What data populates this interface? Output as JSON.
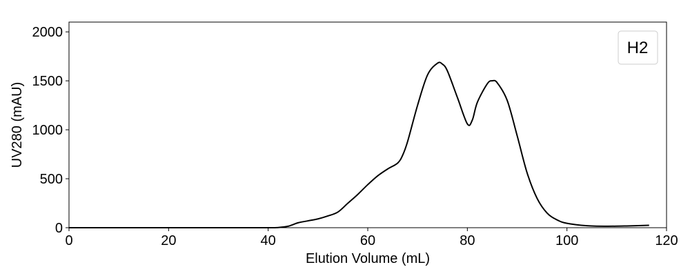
{
  "chart_data": {
    "type": "line",
    "xlabel": "Elution Volume (mL)",
    "ylabel": "UV280 (mAU)",
    "xlim": [
      0,
      120
    ],
    "ylim": [
      0,
      2100
    ],
    "xticks": [
      0,
      20,
      40,
      60,
      80,
      100,
      120
    ],
    "yticks": [
      0,
      500,
      1000,
      1500,
      2000
    ],
    "grid": false,
    "legend_placement": "top-right",
    "legend_label": "H2",
    "line_color": "#000000",
    "series": [
      {
        "name": "H2",
        "x": [
          0,
          10,
          20,
          30,
          40,
          42,
          44,
          46,
          48,
          50,
          52,
          54,
          56,
          58,
          60,
          62,
          64,
          66,
          67,
          68,
          70,
          72,
          74,
          75,
          76,
          78,
          80,
          81,
          82,
          84,
          85,
          86,
          88,
          90,
          92,
          94,
          96,
          98,
          100,
          104,
          108,
          112,
          116.5
        ],
        "y": [
          0,
          0,
          0,
          0,
          0,
          2,
          15,
          50,
          70,
          90,
          120,
          160,
          250,
          340,
          440,
          530,
          600,
          660,
          740,
          880,
          1250,
          1560,
          1680,
          1670,
          1600,
          1330,
          1060,
          1100,
          1280,
          1470,
          1500,
          1480,
          1300,
          940,
          560,
          300,
          150,
          80,
          45,
          20,
          15,
          18,
          25
        ]
      }
    ]
  }
}
